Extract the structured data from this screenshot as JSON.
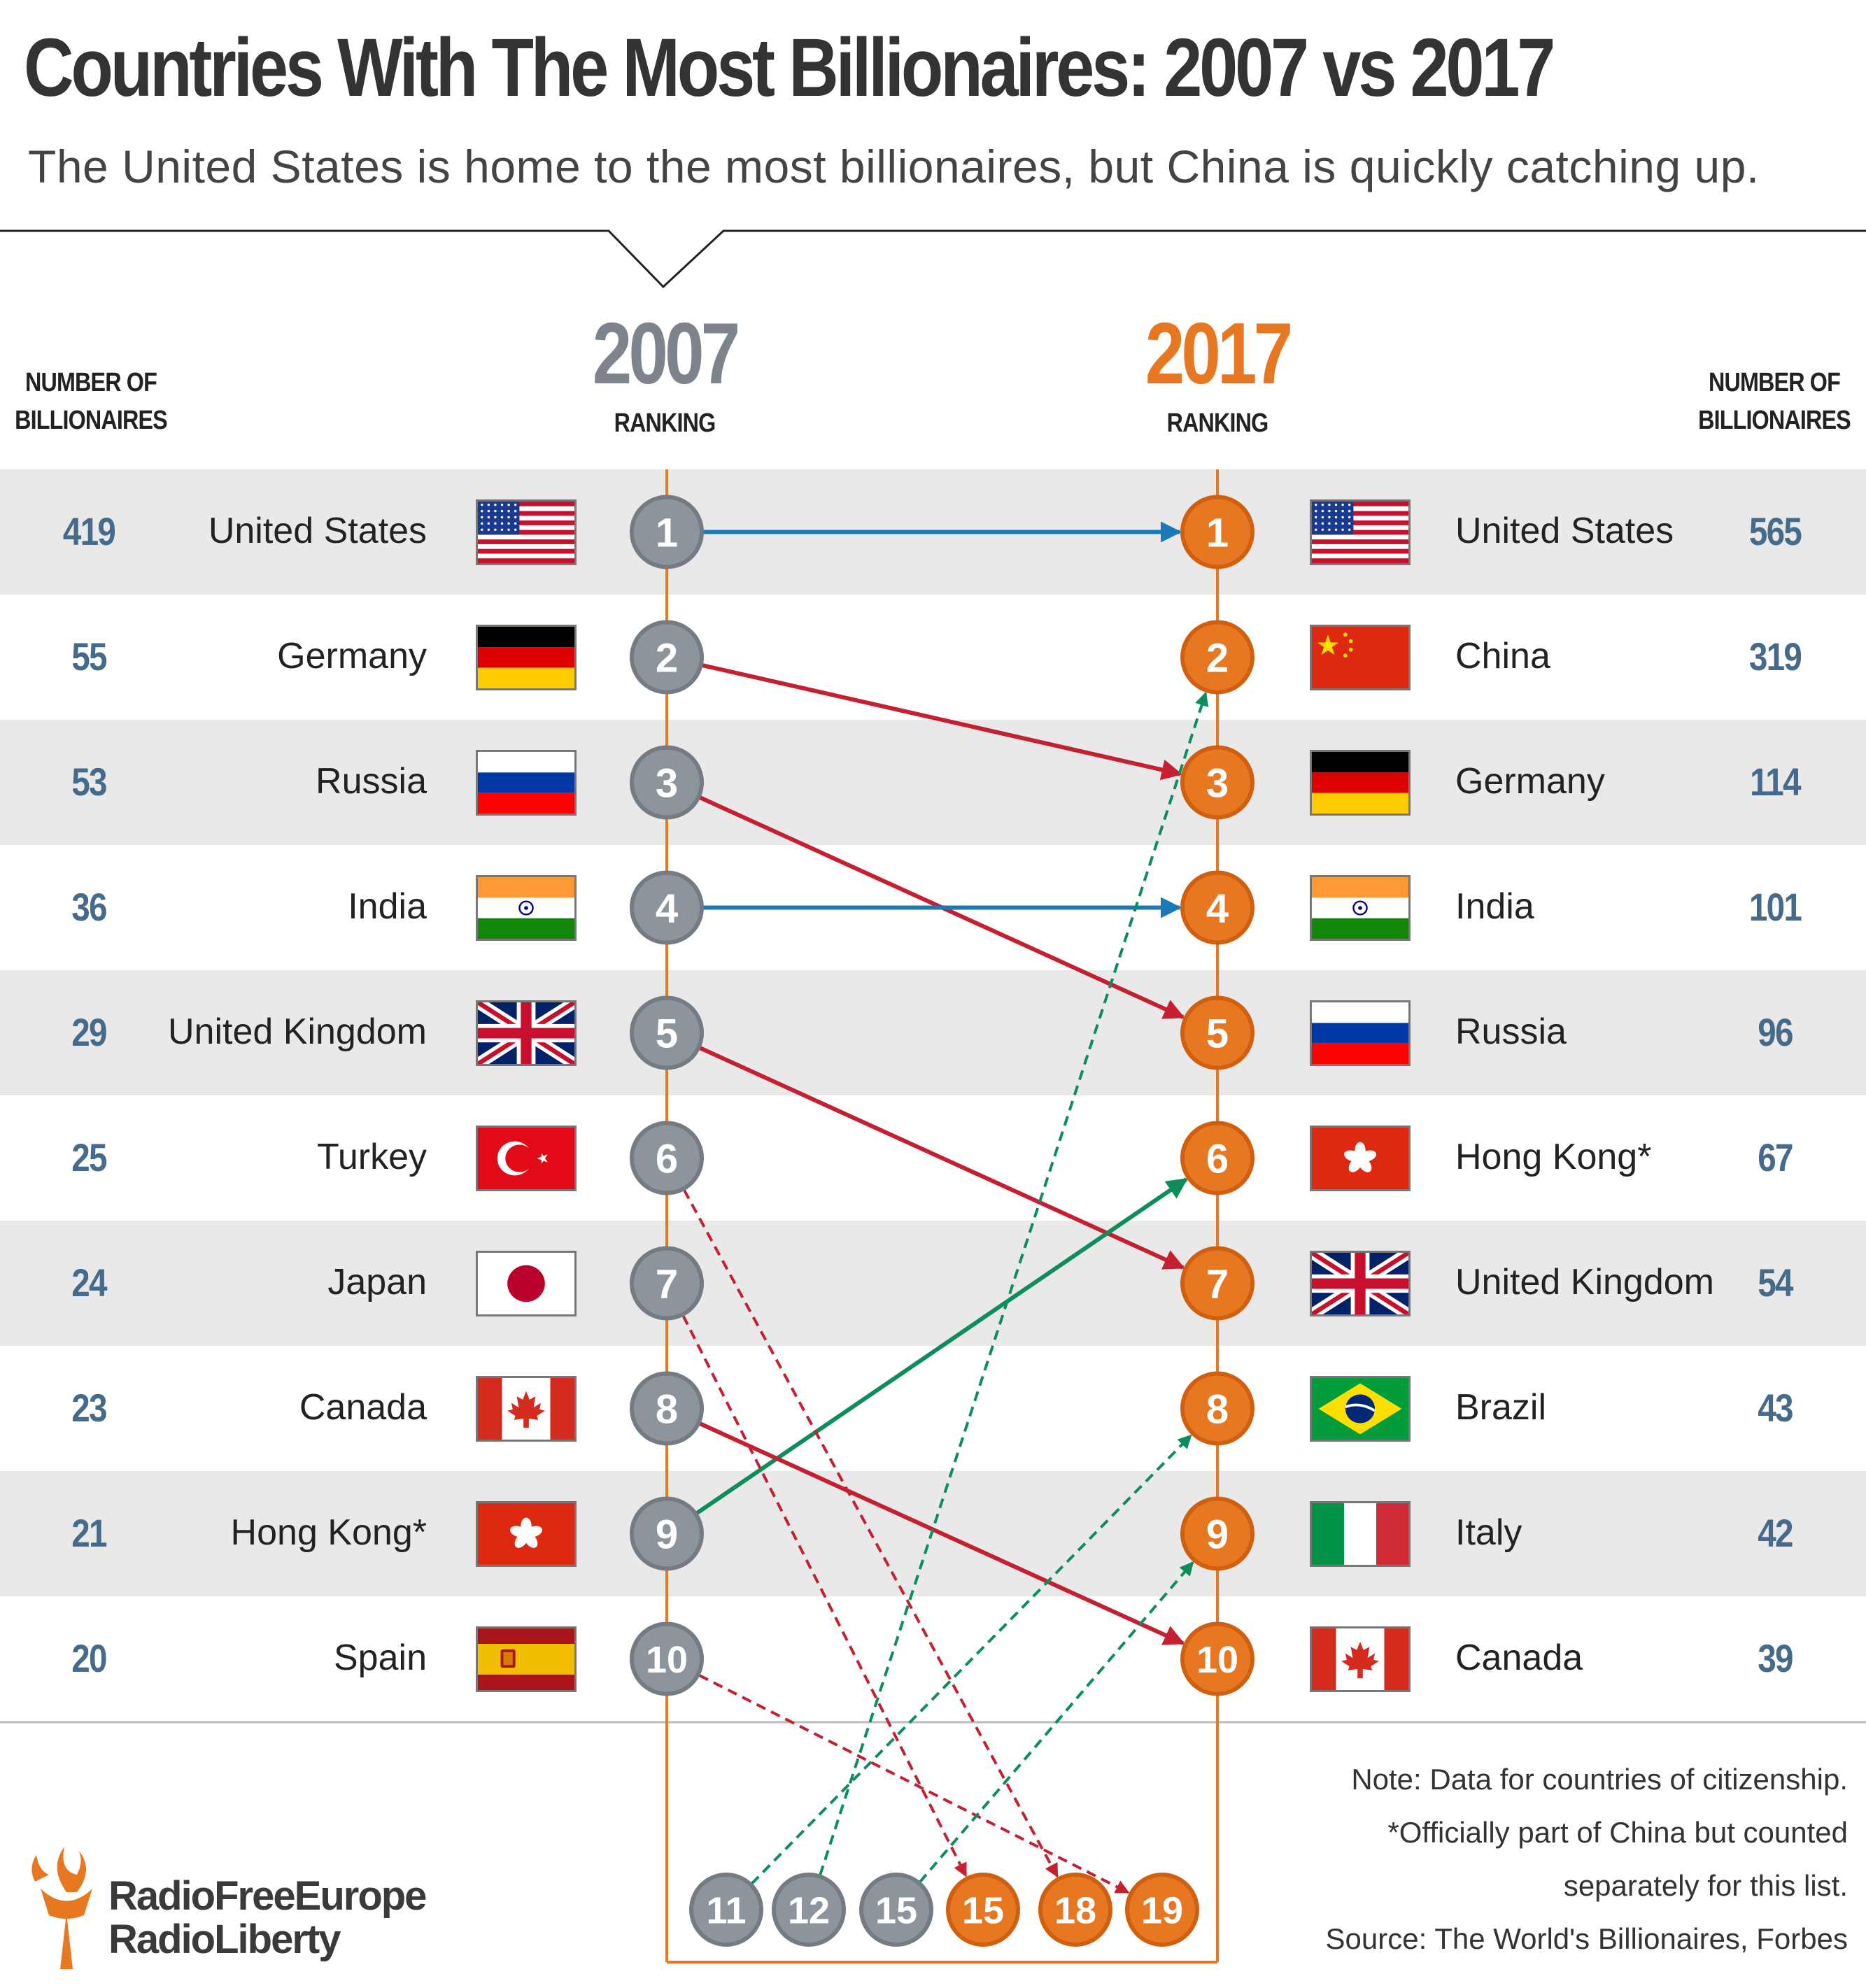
{
  "title": "Countries With The Most Billionaires: 2007 vs 2017",
  "subtitle": "The United States is home to the most billionaires, but China is quickly catching up.",
  "header": {
    "left_count_label_1": "NUMBER OF",
    "left_count_label_2": "BILLIONAIRES",
    "right_count_label_1": "NUMBER OF",
    "right_count_label_2": "BILLIONAIRES",
    "year_left": "2007",
    "year_right": "2017",
    "ranking_left": "RANKING",
    "ranking_right": "RANKING"
  },
  "colors": {
    "gray": "#8c949c",
    "orange": "#e87722",
    "same": "#1a7ab5",
    "down": "#c42032",
    "up": "#0e8c5a",
    "count_text": "#466a8a"
  },
  "chart_data": {
    "type": "slope",
    "title": "Countries With The Most Billionaires: 2007 vs 2017",
    "left_year": "2007",
    "right_year": "2017",
    "left": [
      {
        "rank": 1,
        "country": "United States",
        "count": 419,
        "flag": "us-flag"
      },
      {
        "rank": 2,
        "country": "Germany",
        "count": 55,
        "flag": "germany-flag"
      },
      {
        "rank": 3,
        "country": "Russia",
        "count": 53,
        "flag": "russia-flag"
      },
      {
        "rank": 4,
        "country": "India",
        "count": 36,
        "flag": "india-flag"
      },
      {
        "rank": 5,
        "country": "United Kingdom",
        "count": 29,
        "flag": "uk-flag"
      },
      {
        "rank": 6,
        "country": "Turkey",
        "count": 25,
        "flag": "turkey-flag"
      },
      {
        "rank": 7,
        "country": "Japan",
        "count": 24,
        "flag": "japan-flag"
      },
      {
        "rank": 8,
        "country": "Canada",
        "count": 23,
        "flag": "canada-flag"
      },
      {
        "rank": 9,
        "country": "Hong Kong*",
        "count": 21,
        "flag": "hongkong-flag"
      },
      {
        "rank": 10,
        "country": "Spain",
        "count": 20,
        "flag": "spain-flag"
      }
    ],
    "right": [
      {
        "rank": 1,
        "country": "United States",
        "count": 565,
        "flag": "us-flag"
      },
      {
        "rank": 2,
        "country": "China",
        "count": 319,
        "flag": "china-flag"
      },
      {
        "rank": 3,
        "country": "Germany",
        "count": 114,
        "flag": "germany-flag"
      },
      {
        "rank": 4,
        "country": "India",
        "count": 101,
        "flag": "india-flag"
      },
      {
        "rank": 5,
        "country": "Russia",
        "count": 96,
        "flag": "russia-flag"
      },
      {
        "rank": 6,
        "country": "Hong Kong*",
        "count": 67,
        "flag": "hongkong-flag"
      },
      {
        "rank": 7,
        "country": "United Kingdom",
        "count": 54,
        "flag": "uk-flag"
      },
      {
        "rank": 8,
        "country": "Brazil",
        "count": 43,
        "flag": "brazil-flag"
      },
      {
        "rank": 9,
        "country": "Italy",
        "count": 42,
        "flag": "italy-flag"
      },
      {
        "rank": 10,
        "country": "Canada",
        "count": 39,
        "flag": "canada-flag"
      }
    ],
    "bottom_circles": [
      {
        "label": "11",
        "side": "2007"
      },
      {
        "label": "12",
        "side": "2007"
      },
      {
        "label": "15",
        "side": "2007"
      },
      {
        "label": "15",
        "side": "2017"
      },
      {
        "label": "18",
        "side": "2017"
      },
      {
        "label": "19",
        "side": "2017"
      }
    ],
    "links": [
      {
        "from": "1",
        "to": "1",
        "kind": "same",
        "dashed": false
      },
      {
        "from": "2",
        "to": "3",
        "kind": "down",
        "dashed": false
      },
      {
        "from": "3",
        "to": "5",
        "kind": "down",
        "dashed": false
      },
      {
        "from": "4",
        "to": "4",
        "kind": "same",
        "dashed": false
      },
      {
        "from": "5",
        "to": "7",
        "kind": "down",
        "dashed": false
      },
      {
        "from": "9",
        "to": "6",
        "kind": "up",
        "dashed": false
      },
      {
        "from": "8",
        "to": "10",
        "kind": "down",
        "dashed": false
      },
      {
        "from": "6",
        "to": "b18",
        "kind": "down",
        "dashed": true
      },
      {
        "from": "7",
        "to": "b15",
        "kind": "down",
        "dashed": true
      },
      {
        "from": "10",
        "to": "b19",
        "kind": "down",
        "dashed": true
      },
      {
        "from": "b11",
        "to": "8",
        "kind": "up",
        "dashed": true
      },
      {
        "from": "b12",
        "to": "2",
        "kind": "up",
        "dashed": true
      },
      {
        "from": "b15l",
        "to": "9",
        "kind": "up",
        "dashed": true
      }
    ]
  },
  "notes": {
    "line1": "Note: Data for countries of citizenship.",
    "line2": "*Officially part of China but counted",
    "line3": "separately for this list.",
    "line4": "Source: The World's Billionaires, Forbes"
  },
  "logo": {
    "line1": "RadioFreeEurope",
    "line2": "RadioLiberty"
  }
}
